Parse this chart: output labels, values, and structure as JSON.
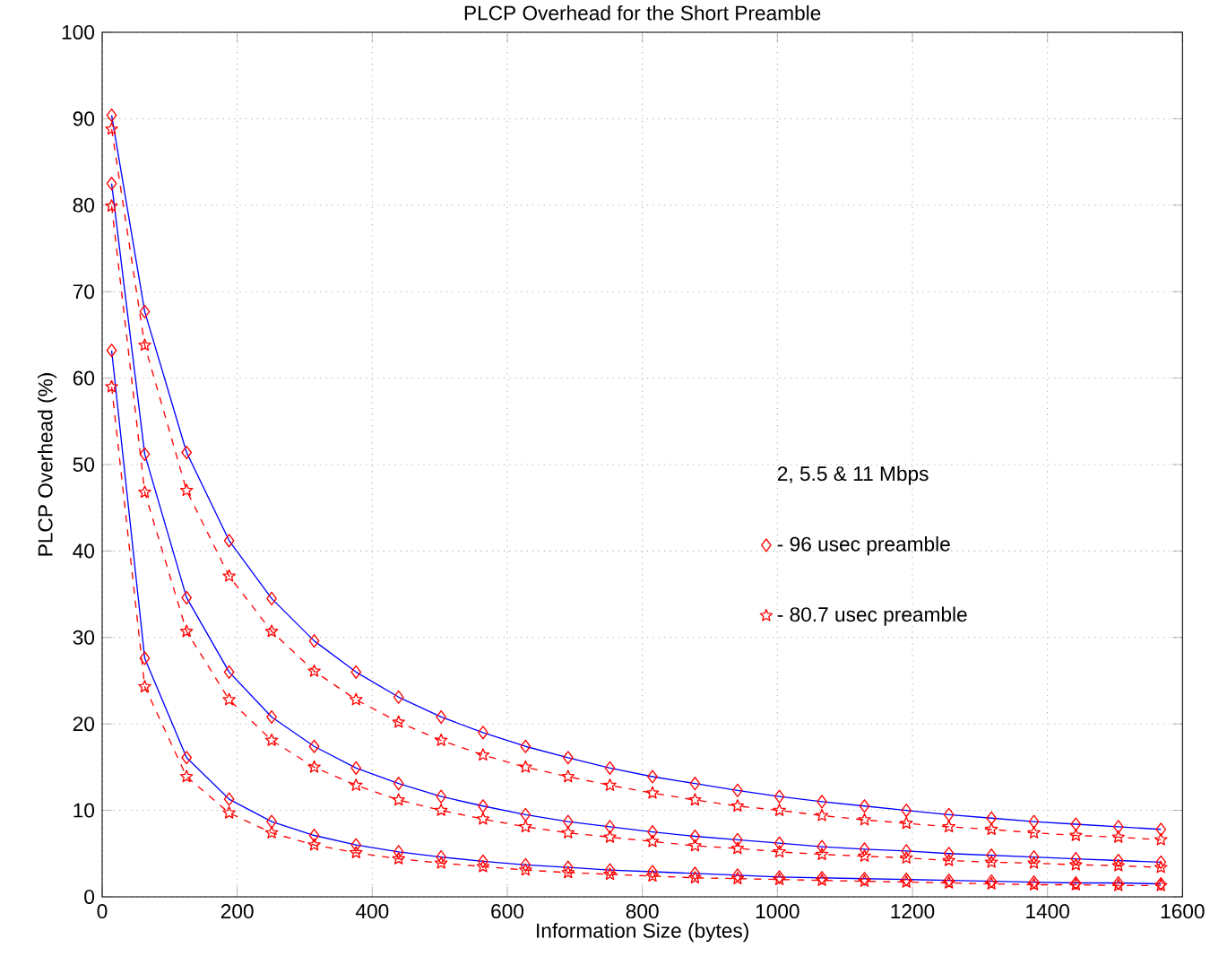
{
  "chart_data": {
    "type": "line",
    "title": "PLCP Overhead for the Short Preamble",
    "xlabel": "Information Size (bytes)",
    "ylabel": "PLCP Overhead (%)",
    "legend_title": "2, 5.5 & 11 Mbps",
    "x": [
      14,
      63,
      125,
      188,
      251,
      314,
      376,
      439,
      502,
      564,
      627,
      690,
      752,
      815,
      878,
      941,
      1003,
      1066,
      1129,
      1191,
      1254,
      1317,
      1380,
      1442,
      1505,
      1568
    ],
    "series": [
      {
        "name": "- 96 usec preamble",
        "color": "#0000ff",
        "marker": "diamond",
        "line_style": "solid",
        "values": [
          90.4,
          67.7,
          51.4,
          41.2,
          34.5,
          29.6,
          26.0,
          23.1,
          20.8,
          19.0,
          17.4,
          16.1,
          14.9,
          13.9,
          13.1,
          12.3,
          11.6,
          11.0,
          10.5,
          10.0,
          9.5,
          9.1,
          8.7,
          8.4,
          8.1,
          7.8
        ]
      },
      {
        "name": "- 80.7 usec preamble",
        "color": "#ff0000",
        "marker": "star",
        "line_style": "dashed",
        "values": [
          88.8,
          63.8,
          47.0,
          37.1,
          30.7,
          26.1,
          22.8,
          20.2,
          18.1,
          16.4,
          15.0,
          13.9,
          12.9,
          12.0,
          11.2,
          10.5,
          10.0,
          9.4,
          8.9,
          8.5,
          8.1,
          7.8,
          7.4,
          7.1,
          6.9,
          6.6
        ]
      },
      {
        "color": "#0000ff",
        "marker": "diamond",
        "line_style": "solid",
        "values": [
          82.5,
          51.2,
          34.6,
          26.0,
          20.8,
          17.4,
          14.9,
          13.1,
          11.6,
          10.5,
          9.5,
          8.7,
          8.1,
          7.5,
          7.0,
          6.6,
          6.2,
          5.8,
          5.5,
          5.3,
          5.0,
          4.8,
          4.6,
          4.4,
          4.2,
          4.0
        ]
      },
      {
        "color": "#ff0000",
        "marker": "star",
        "line_style": "dashed",
        "values": [
          79.9,
          46.8,
          30.7,
          22.8,
          18.1,
          15.0,
          12.9,
          11.2,
          10.0,
          9.0,
          8.1,
          7.4,
          6.9,
          6.4,
          5.9,
          5.6,
          5.2,
          4.9,
          4.7,
          4.5,
          4.2,
          4.0,
          3.9,
          3.7,
          3.6,
          3.4
        ]
      },
      {
        "color": "#0000ff",
        "marker": "diamond",
        "line_style": "solid",
        "values": [
          63.2,
          27.6,
          16.1,
          11.3,
          8.7,
          7.1,
          6.0,
          5.2,
          4.6,
          4.1,
          3.7,
          3.4,
          3.1,
          2.9,
          2.7,
          2.5,
          2.3,
          2.2,
          2.1,
          2.0,
          1.9,
          1.8,
          1.7,
          1.6,
          1.6,
          1.5
        ]
      },
      {
        "color": "#ff0000",
        "marker": "star",
        "line_style": "dashed",
        "values": [
          59.0,
          24.3,
          13.9,
          9.7,
          7.4,
          6.0,
          5.1,
          4.4,
          3.9,
          3.5,
          3.1,
          2.8,
          2.6,
          2.4,
          2.2,
          2.1,
          2.0,
          1.9,
          1.8,
          1.7,
          1.6,
          1.5,
          1.4,
          1.4,
          1.3,
          1.3
        ]
      }
    ],
    "xlim": [
      0,
      1600
    ],
    "ylim": [
      0,
      100
    ],
    "xticks": [
      0,
      200,
      400,
      600,
      800,
      1000,
      1200,
      1400,
      1600
    ],
    "yticks": [
      0,
      10,
      20,
      30,
      40,
      50,
      60,
      70,
      80,
      90,
      100
    ],
    "grid": true,
    "legend": "right"
  }
}
